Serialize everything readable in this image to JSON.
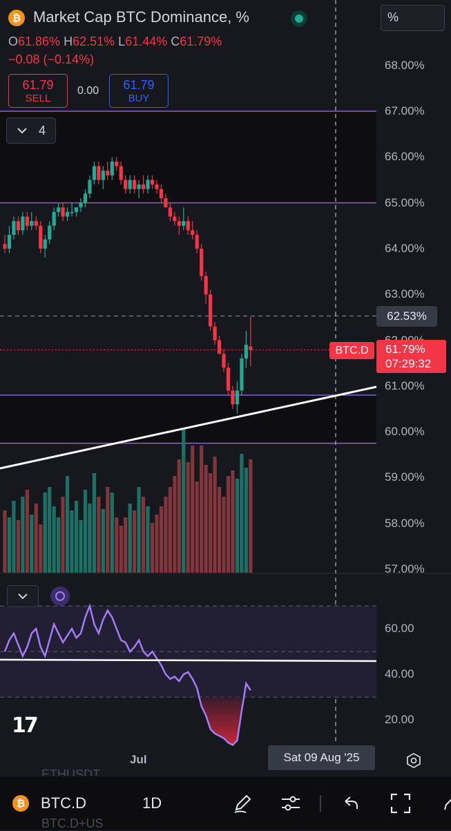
{
  "header": {
    "symbol_badge": "₿",
    "title": "Market Cap BTC Dominance, %",
    "unit_button": "%",
    "ohlc": {
      "o_key": "O",
      "o": "61.86%",
      "h_key": "H",
      "h": "62.51%",
      "l_key": "L",
      "l": "61.44%",
      "c_key": "C",
      "c": "61.79%",
      "change": "−0.08 (−0.14%)"
    },
    "sell": {
      "price": "61.79",
      "label": "SELL"
    },
    "spread": "0.00",
    "buy": {
      "price": "61.79",
      "label": "BUY"
    },
    "indicator_count": "4"
  },
  "price_axis": {
    "labels": [
      "68.00%",
      "67.00%",
      "66.00%",
      "65.00%",
      "64.00%",
      "63.00%",
      "62.00%",
      "61.00%",
      "60.00%",
      "59.00%",
      "58.00%",
      "57.00%"
    ],
    "highlight_label": "62.53%",
    "symbol_tag": "BTC.D",
    "current_price": "61.79%",
    "countdown": "07:29:32"
  },
  "rsi_axis": {
    "labels": [
      "60.00",
      "40.00",
      "20.00"
    ]
  },
  "time_axis": {
    "month_label": "Jul",
    "crosshair_date": "Sat 09 Aug '25"
  },
  "ghost_text": {
    "above": "ETHUSDT",
    "below": "BTC.D+US"
  },
  "toolbar": {
    "symbol": "BTC.D",
    "interval": "1D"
  },
  "colors": {
    "up": "#22ab94",
    "down": "#f23645",
    "zone_line": "#8a5cf0",
    "rsi_line": "#a27df5",
    "background": "#17171e"
  },
  "chart_data": {
    "type": "candlestick",
    "timeframe": "1D",
    "y_unit": "%",
    "ylim": [
      56.95,
      68.2
    ],
    "horizontal_levels": [
      67.0,
      65.0,
      60.8,
      59.75
    ],
    "dashed_level": 62.53,
    "current_price": 61.79,
    "candles": [
      [
        64.1,
        64.3,
        63.9,
        64.0
      ],
      [
        64.0,
        64.5,
        63.9,
        64.3
      ],
      [
        64.3,
        64.7,
        64.2,
        64.6
      ],
      [
        64.6,
        64.7,
        64.3,
        64.4
      ],
      [
        64.4,
        64.8,
        64.3,
        64.7
      ],
      [
        64.7,
        64.8,
        64.4,
        64.5
      ],
      [
        64.5,
        64.8,
        64.4,
        64.6
      ],
      [
        64.6,
        64.7,
        64.4,
        64.5
      ],
      [
        64.5,
        64.6,
        63.9,
        64.0
      ],
      [
        64.0,
        64.3,
        63.8,
        64.2
      ],
      [
        64.2,
        64.6,
        64.1,
        64.5
      ],
      [
        64.5,
        64.9,
        64.4,
        64.8
      ],
      [
        64.8,
        65.0,
        64.7,
        64.9
      ],
      [
        64.9,
        65.0,
        64.6,
        64.7
      ],
      [
        64.7,
        64.9,
        64.6,
        64.8
      ],
      [
        64.8,
        65.0,
        64.7,
        64.8
      ],
      [
        64.8,
        64.9,
        64.7,
        64.9
      ],
      [
        64.9,
        65.1,
        64.8,
        65.0
      ],
      [
        65.0,
        65.3,
        64.9,
        65.2
      ],
      [
        65.2,
        65.6,
        65.1,
        65.5
      ],
      [
        65.5,
        65.9,
        65.4,
        65.8
      ],
      [
        65.8,
        65.9,
        65.4,
        65.5
      ],
      [
        65.5,
        65.8,
        65.3,
        65.7
      ],
      [
        65.7,
        65.9,
        65.5,
        65.6
      ],
      [
        65.6,
        66.0,
        65.5,
        65.9
      ],
      [
        65.9,
        66.0,
        65.7,
        65.8
      ],
      [
        65.8,
        65.9,
        65.4,
        65.5
      ],
      [
        65.5,
        65.6,
        65.2,
        65.3
      ],
      [
        65.3,
        65.6,
        65.2,
        65.5
      ],
      [
        65.5,
        65.6,
        65.2,
        65.3
      ],
      [
        65.3,
        65.5,
        65.1,
        65.4
      ],
      [
        65.4,
        65.6,
        65.2,
        65.3
      ],
      [
        65.3,
        65.6,
        65.2,
        65.5
      ],
      [
        65.5,
        65.6,
        65.3,
        65.4
      ],
      [
        65.4,
        65.5,
        65.2,
        65.3
      ],
      [
        65.3,
        65.4,
        65.0,
        65.1
      ],
      [
        65.1,
        65.2,
        64.9,
        64.9
      ],
      [
        64.9,
        65.0,
        64.6,
        64.7
      ],
      [
        64.7,
        64.8,
        64.5,
        64.6
      ],
      [
        64.6,
        64.7,
        64.3,
        64.5
      ],
      [
        64.5,
        64.9,
        64.4,
        64.6
      ],
      [
        64.6,
        64.7,
        64.3,
        64.4
      ],
      [
        64.4,
        64.6,
        64.2,
        64.3
      ],
      [
        64.3,
        64.4,
        63.9,
        64.0
      ],
      [
        64.0,
        64.1,
        63.3,
        63.4
      ],
      [
        63.4,
        63.5,
        62.8,
        63.0
      ],
      [
        63.0,
        63.1,
        62.2,
        62.3
      ],
      [
        62.3,
        62.4,
        61.9,
        62.0
      ],
      [
        62.0,
        62.1,
        61.7,
        61.7
      ],
      [
        61.7,
        61.8,
        61.3,
        61.4
      ],
      [
        61.4,
        61.5,
        60.8,
        60.9
      ],
      [
        60.9,
        61.0,
        60.5,
        60.6
      ],
      [
        60.6,
        61.1,
        60.4,
        60.9
      ],
      [
        60.9,
        61.7,
        60.8,
        61.6
      ],
      [
        61.6,
        62.2,
        61.4,
        61.9
      ],
      [
        61.86,
        62.51,
        61.44,
        61.79
      ]
    ],
    "volume_relative": [
      0.45,
      0.4,
      0.52,
      0.38,
      0.55,
      0.6,
      0.42,
      0.5,
      0.35,
      0.58,
      0.62,
      0.48,
      0.4,
      0.55,
      0.7,
      0.45,
      0.52,
      0.38,
      0.6,
      0.5,
      0.72,
      0.55,
      0.46,
      0.62,
      0.58,
      0.4,
      0.34,
      0.4,
      0.5,
      0.45,
      0.62,
      0.55,
      0.48,
      0.36,
      0.42,
      0.48,
      0.55,
      0.62,
      0.7,
      0.82,
      1.05,
      0.8,
      0.92,
      0.66,
      0.92,
      0.78,
      0.72,
      0.84,
      0.62,
      0.55,
      0.7,
      0.74,
      0.68,
      0.86,
      0.76,
      0.82
    ],
    "rsi": {
      "ylim": [
        5,
        75
      ],
      "bands": [
        30,
        50,
        70
      ],
      "threshold_line": 41,
      "values": [
        50,
        55,
        58,
        53,
        48,
        52,
        58,
        60,
        52,
        48,
        55,
        62,
        58,
        54,
        57,
        60,
        56,
        58,
        65,
        70,
        62,
        58,
        64,
        68,
        65,
        60,
        55,
        54,
        50,
        52,
        55,
        50,
        48,
        50,
        47,
        44,
        40,
        38,
        39,
        37,
        40,
        41,
        38,
        34,
        26,
        22,
        16,
        14,
        13,
        12,
        10,
        9,
        11,
        24,
        36,
        33
      ]
    }
  }
}
